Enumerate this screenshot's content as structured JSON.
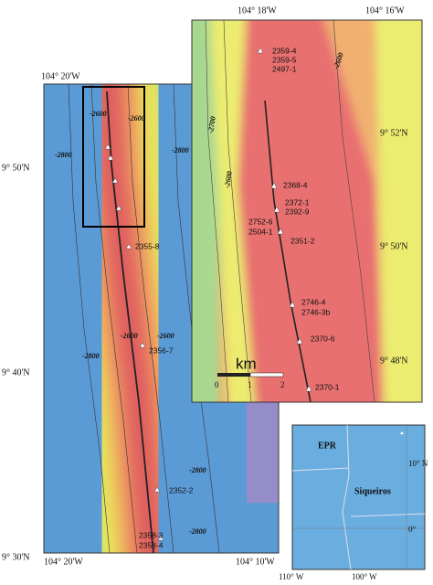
{
  "main_map": {
    "lon_top": "104° 20'W",
    "lon_bottom": [
      "104° 20'W",
      "104° 10'W"
    ],
    "lat": [
      "9° 50'N",
      "9° 40'N",
      "9° 30'N"
    ],
    "contours": [
      "-2600",
      "-2600",
      "-2800",
      "-2800",
      "-2600",
      "-2600",
      "-2800",
      "-2800",
      "-2800"
    ],
    "samples": [
      "2355-8",
      "2356-7",
      "2352-2",
      "2358-3",
      "2358-4"
    ]
  },
  "inset": {
    "lon": [
      "104° 18'W",
      "104° 16'W"
    ],
    "lat": [
      "9° 52'N",
      "9° 50'N",
      "9° 48'N"
    ],
    "contours": [
      "-2700",
      "-2600",
      "-2600"
    ],
    "samples": [
      "2359-4",
      "2359-5",
      "2497-1",
      "2368-4",
      "2372-1",
      "2392-9",
      "2752-6",
      "2504-1",
      "2351-2",
      "2746-4",
      "2746-3b",
      "2370-6",
      "2370-1"
    ],
    "scale_unit": "km",
    "scale_ticks": [
      "0",
      "1",
      "2"
    ]
  },
  "location_map": {
    "labels": [
      "EPR",
      "Siqueiros"
    ],
    "lat": [
      "10° N",
      "0°"
    ],
    "lon": [
      "110° W",
      "100° W"
    ]
  }
}
